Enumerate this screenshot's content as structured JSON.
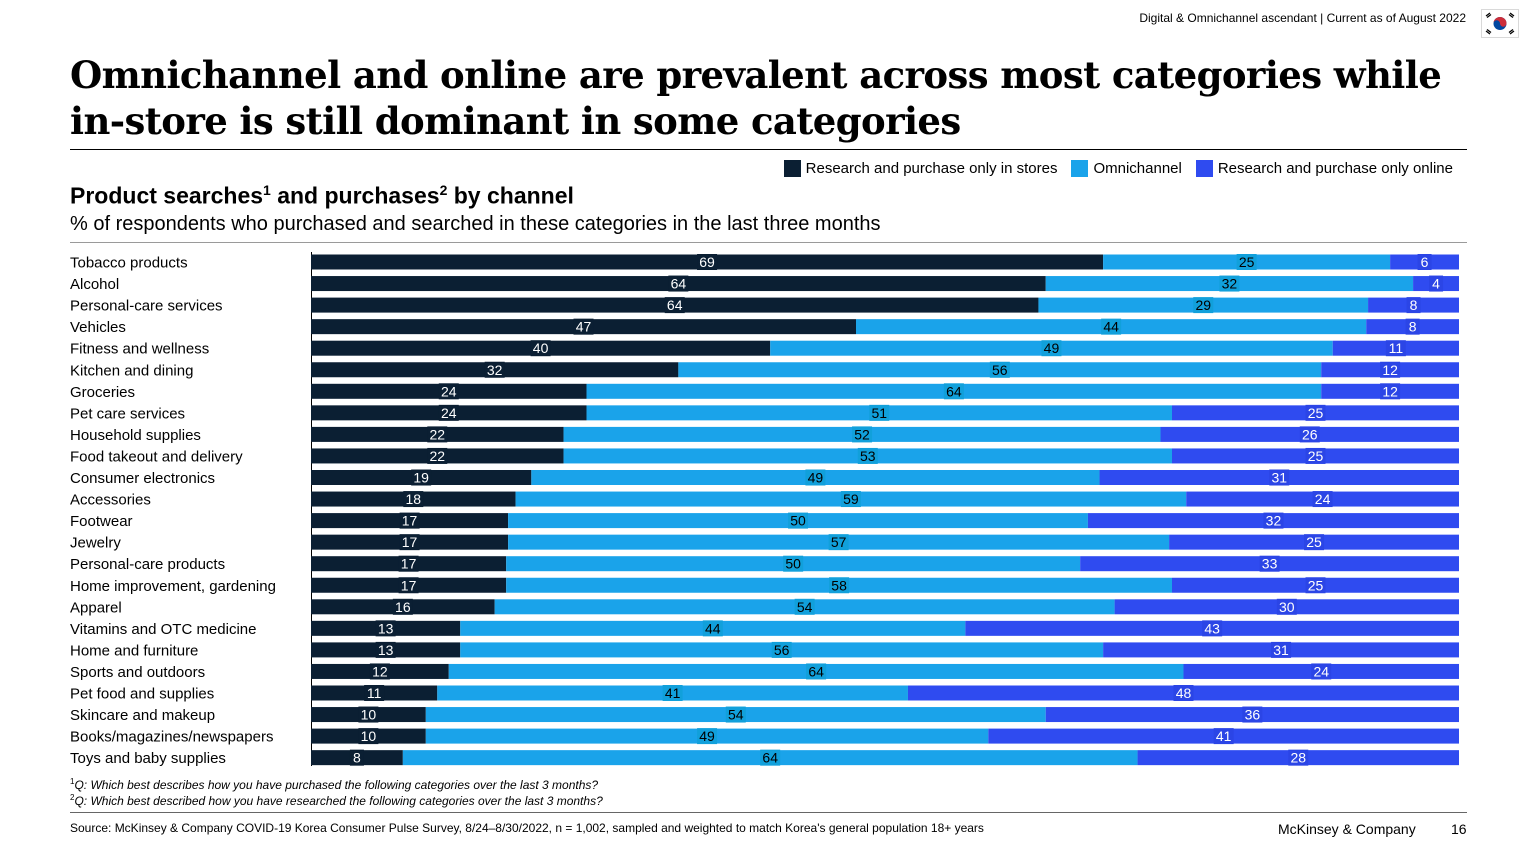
{
  "header": {
    "note": "Digital & Omnichannel ascendant | Current as of August 2022",
    "flag_icon": "south-korea-flag-icon"
  },
  "title_lines": [
    "Omnichannel and online are prevalent across most categories while",
    "in-store is still dominant in some categories"
  ],
  "chart_heading": {
    "title_part1": "Product searches",
    "sup1": "1",
    "title_part2": " and purchases",
    "sup2": "2",
    "title_part3": " by channel",
    "subtitle": "% of respondents who purchased and searched in these categories in the last three months"
  },
  "chart_data": {
    "type": "bar",
    "orientation": "horizontal-stacked-100",
    "categories": [
      "Tobacco products",
      "Alcohol",
      "Personal-care services",
      "Vehicles",
      "Fitness and wellness",
      "Kitchen and dining",
      "Groceries",
      "Pet care services",
      "Household supplies",
      "Food takeout and delivery",
      "Consumer electronics",
      "Accessories",
      "Footwear",
      "Jewelry",
      "Personal-care products",
      "Home improvement, gardening",
      "Apparel",
      "Vitamins and OTC medicine",
      "Home and furniture",
      "Sports and outdoors",
      "Pet food and supplies",
      "Skincare and makeup",
      "Books/magazines/newspapers",
      "Toys and baby supplies"
    ],
    "series": [
      {
        "name": "Research and purchase only in stores",
        "color": "#0b1f33",
        "values": [
          69,
          64,
          64,
          47,
          40,
          32,
          24,
          24,
          22,
          22,
          19,
          18,
          17,
          17,
          17,
          17,
          16,
          13,
          13,
          12,
          11,
          10,
          10,
          8
        ]
      },
      {
        "name": "Omnichannel",
        "color": "#1aa3ea",
        "values": [
          25,
          32,
          29,
          44,
          49,
          56,
          64,
          51,
          52,
          53,
          49,
          59,
          50,
          57,
          50,
          58,
          54,
          44,
          56,
          64,
          41,
          54,
          49,
          64
        ]
      },
      {
        "name": "Research and purchase only online",
        "color": "#2f4bf0",
        "values": [
          6,
          4,
          8,
          8,
          11,
          12,
          12,
          25,
          26,
          25,
          31,
          24,
          32,
          25,
          33,
          25,
          30,
          43,
          31,
          24,
          48,
          36,
          41,
          28
        ]
      }
    ],
    "label_bg": {
      "stores": "#0b1f33",
      "omnichannel": "#11a0db",
      "online": "#2b45e6"
    },
    "legend_position": "top-right",
    "xlim": [
      0,
      100
    ]
  },
  "footnotes": [
    {
      "sup": "1",
      "text": "Q: Which best describes how you have purchased the following categories over the last 3 months?"
    },
    {
      "sup": "2",
      "text": "Q: Which best described how you have researched the following categories over the last 3 months?"
    }
  ],
  "footer": {
    "source": "Source: McKinsey & Company COVID-19 Korea Consumer Pulse Survey, 8/24–8/30/2022, n = 1,002, sampled and weighted to match Korea's general population 18+ years",
    "brand": "McKinsey & Company",
    "page": "16"
  }
}
